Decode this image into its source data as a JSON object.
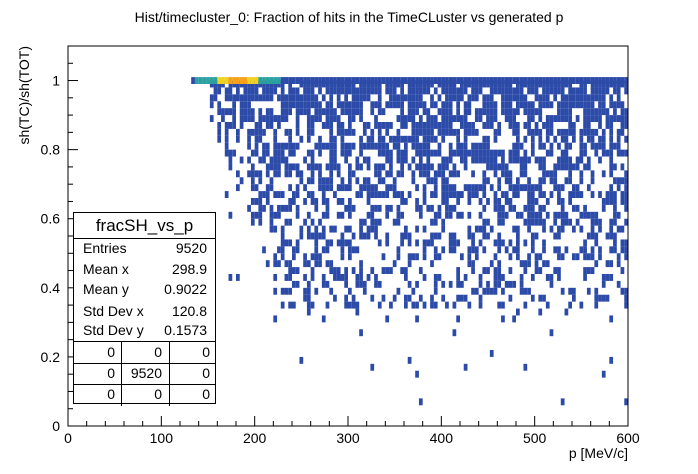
{
  "chart_data": {
    "type": "heatmap",
    "title": "Hist/timecluster_0: Fraction of hits in the TimeCLuster vs generated p",
    "xlabel": "p [MeV/c]",
    "ylabel": "sh(TC)/sh(TOT)",
    "xlim": [
      0,
      600
    ],
    "ylim": [
      0,
      1.1
    ],
    "x_ticks": [
      "0",
      "100",
      "200",
      "300",
      "400",
      "500",
      "600"
    ],
    "y_ticks": [
      "0",
      "0.2",
      "0.4",
      "0.6",
      "0.8",
      "1"
    ],
    "x_tick_values": [
      0,
      100,
      200,
      300,
      400,
      500,
      600
    ],
    "y_tick_values": [
      0,
      0.2,
      0.4,
      0.6,
      0.8,
      1.0
    ],
    "colors": {
      "low": "#2c4aa8",
      "mid": "#2aa0a0",
      "high": "#f2d21f",
      "peak": "#f7a21b"
    },
    "bins": {
      "x_bin_width": 4,
      "y_bin_width": 0.02,
      "dense_band_y": 1.0,
      "band_intensity_peak_x": 180
    },
    "stats": {
      "name": "fracSH_vs_p",
      "rows": [
        {
          "label": "Entries",
          "value": "9520"
        },
        {
          "label": "Mean x",
          "value": "298.9"
        },
        {
          "label": "Mean y",
          "value": "0.9022"
        },
        {
          "label": "Std Dev x",
          "value": "120.8"
        },
        {
          "label": "Std Dev y",
          "value": "0.1573"
        }
      ],
      "overflow_grid": [
        [
          "0",
          "0",
          "0"
        ],
        [
          "0",
          "9520",
          "0"
        ],
        [
          "0",
          "0",
          "0"
        ]
      ]
    }
  }
}
